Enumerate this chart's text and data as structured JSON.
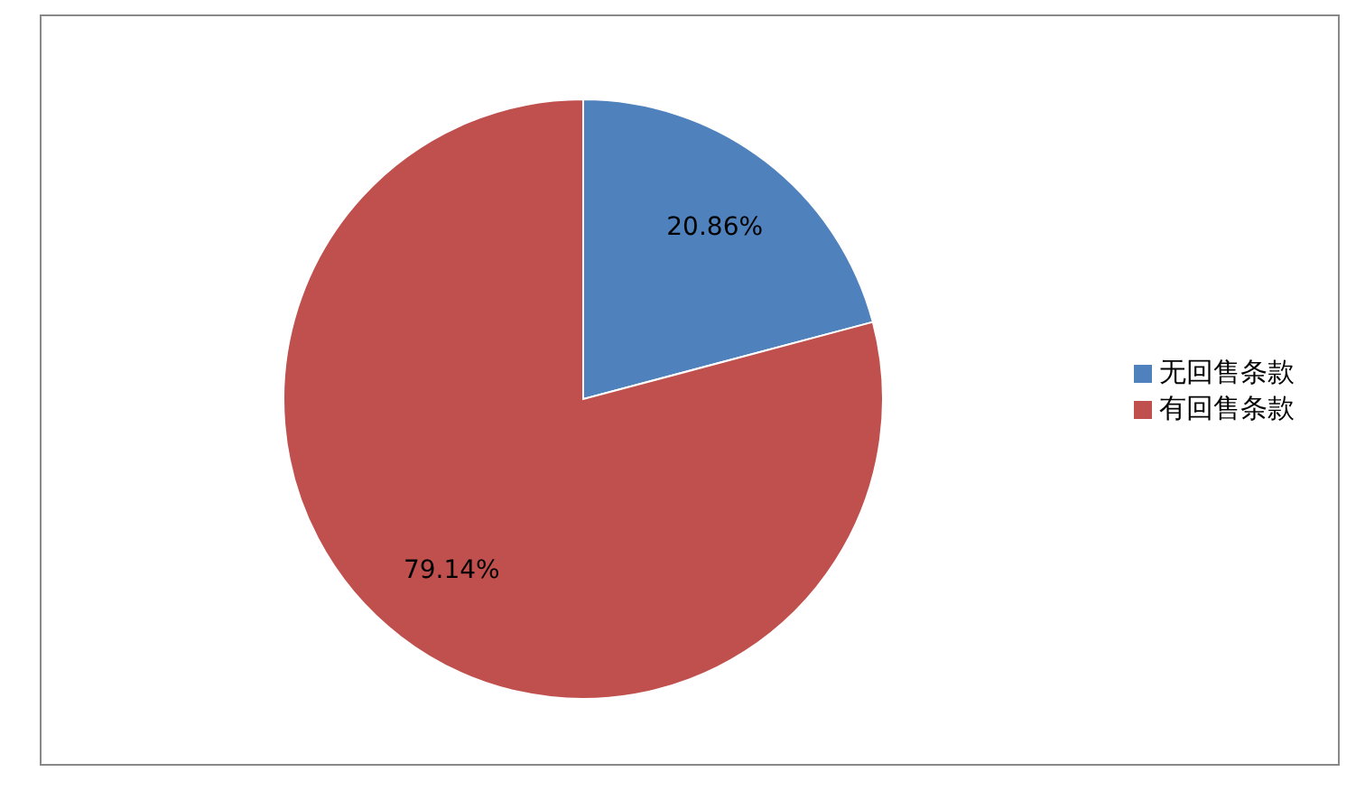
{
  "chart_data": {
    "type": "pie",
    "categories": [
      "无回售条款",
      "有回售条款"
    ],
    "values": [
      20.86,
      79.14
    ],
    "colors": [
      "#4f81bd",
      "#c0504d"
    ],
    "value_labels": [
      "20.86%",
      "79.14%"
    ],
    "legend": "right"
  }
}
